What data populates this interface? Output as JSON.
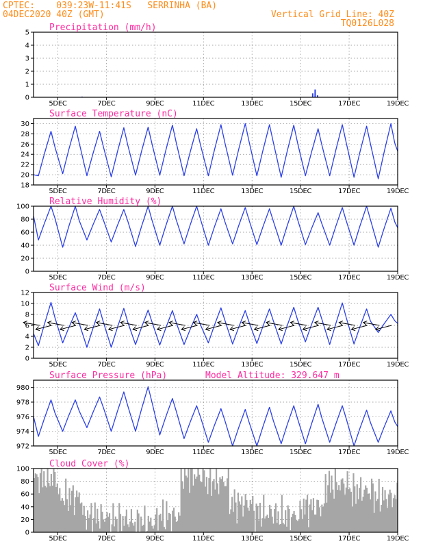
{
  "header": {
    "line1": "CPTEC:    039:23W-11:41S   SERRINHA (BA)",
    "line2": "04DEC2020 40Z (GMT)",
    "right1": "Vertical Grid Line: 40Z",
    "right2": "TQ0126L028"
  },
  "colors": {
    "header": "#ff8c1a",
    "title": "#ff2aa0",
    "line": "#2a3fe8",
    "cloud": "#a6a6a6",
    "grid": "#888888"
  },
  "x_axis": {
    "range_days": [
      0,
      15
    ],
    "tick_labels": [
      "5DEC",
      "7DEC",
      "9DEC",
      "11DEC",
      "13DEC",
      "15DEC",
      "17DEC",
      "19DEC"
    ],
    "tick_days": [
      1,
      3,
      5,
      7,
      9,
      11,
      13,
      15
    ]
  },
  "chart_data": [
    {
      "type": "bar",
      "title": "Precipitation (mm/h)",
      "ylim": [
        0,
        5
      ],
      "yticks": [
        0,
        1,
        2,
        3,
        4,
        5
      ],
      "x": [
        2.0,
        11.5,
        11.6,
        11.7
      ],
      "values": [
        0.05,
        0.3,
        0.6,
        0.15
      ],
      "grid": true
    },
    {
      "type": "line",
      "title": "Surface Temperature (nC)",
      "ylim": [
        18,
        31
      ],
      "yticks": [
        18,
        20,
        22,
        24,
        26,
        28,
        30
      ],
      "daily_max": [
        28.5,
        29.5,
        28.5,
        29.2,
        29.3,
        29.7,
        29.0,
        29.8,
        30.0,
        29.8,
        29.7,
        29.0,
        29.8,
        29.5,
        30.0
      ],
      "daily_min": [
        19.8,
        20.2,
        19.8,
        19.6,
        19.9,
        19.9,
        19.8,
        19.8,
        19.9,
        19.8,
        19.5,
        19.8,
        19.8,
        19.5,
        19.2
      ],
      "start": 20.0,
      "grid": true
    },
    {
      "type": "line",
      "title": "Relative Humidity (%)",
      "ylim": [
        0,
        100
      ],
      "yticks": [
        0,
        20,
        40,
        60,
        80,
        100
      ],
      "daily_max": [
        100,
        100,
        95,
        95,
        100,
        100,
        100,
        96,
        98,
        96,
        100,
        90,
        98,
        100,
        97
      ],
      "daily_min": [
        48,
        37,
        48,
        45,
        38,
        40,
        42,
        40,
        42,
        41,
        40,
        41,
        40,
        40,
        37
      ],
      "start": 85,
      "grid": true
    },
    {
      "type": "line",
      "title": "Surface Wind (m/s)",
      "ylim": [
        0,
        12
      ],
      "yticks": [
        0,
        2,
        4,
        6,
        8,
        10,
        12
      ],
      "daily_max": [
        10.2,
        8.3,
        9.0,
        9.1,
        8.8,
        8.7,
        8.0,
        9.2,
        8.7,
        9.0,
        9.3,
        9.3,
        10.1,
        9.0,
        8.0
      ],
      "daily_min": [
        2.3,
        2.8,
        2.0,
        2.0,
        2.5,
        2.4,
        2.5,
        2.8,
        2.6,
        2.7,
        2.6,
        3.0,
        2.5,
        2.6,
        4.7
      ],
      "start": 4.5,
      "vector_direction": "from east / east-southeast",
      "grid": true
    },
    {
      "type": "line",
      "title": "Surface Pressure (hPa)",
      "annotation": "Model Altitude: 329.647 m",
      "ylim": [
        972,
        981
      ],
      "yticks": [
        972,
        974,
        976,
        978,
        980
      ],
      "daily_max": [
        978.3,
        978.3,
        978.7,
        979.4,
        980.1,
        978.5,
        977.5,
        977.1,
        977.0,
        977.3,
        977.5,
        977.7,
        977.5,
        976.9,
        976.8
      ],
      "daily_min": [
        973.3,
        974.0,
        974.5,
        974.0,
        974.0,
        973.5,
        973.0,
        972.5,
        972.0,
        972.0,
        972.3,
        972.3,
        972.5,
        972.0,
        972.5
      ],
      "start": 976.0,
      "grid": true
    },
    {
      "type": "area",
      "title": "Cloud Cover (%)",
      "ylim": [
        0,
        100
      ],
      "yticks": [
        0,
        20,
        40,
        60,
        80,
        100
      ],
      "daily_mean": [
        85,
        55,
        25,
        20,
        15,
        25,
        90,
        80,
        45,
        30,
        25,
        40,
        75,
        65,
        55
      ],
      "grid": true
    }
  ]
}
